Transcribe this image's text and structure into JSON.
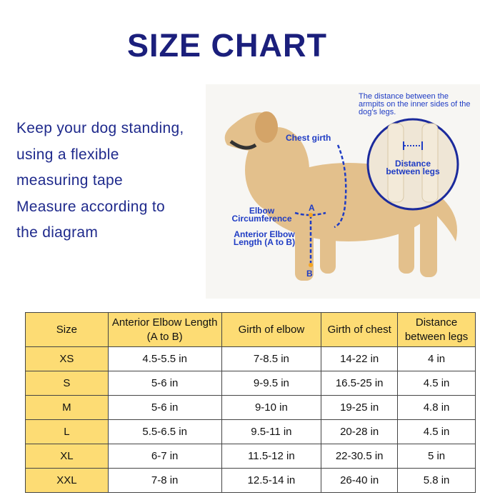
{
  "title": "SIZE CHART",
  "intro_lines": [
    "Keep your dog standing,",
    "using a flexible",
    "measuring tape",
    "Measure according to",
    "the diagram"
  ],
  "diagram": {
    "note": "The distance between the armpits on the inner sides of the dog's legs.",
    "chest_girth": "Chest girth",
    "distance_between_legs": "Distance between legs",
    "elbow_circumference": "Elbow Circumference",
    "anterior_elbow_length": "Anterior Elbow Length (A to B)",
    "point_a": "A",
    "point_b": "B",
    "accent_color": "#1f3cc4"
  },
  "table": {
    "headers": [
      "Size",
      "Anterior Elbow Length (A to B)",
      "Girth of elbow",
      "Girth of chest",
      "Distance between legs"
    ],
    "rows": [
      [
        "XS",
        "4.5-5.5 in",
        "7-8.5 in",
        "14-22 in",
        "4 in"
      ],
      [
        "S",
        "5-6 in",
        "9-9.5 in",
        "16.5-25 in",
        "4.5 in"
      ],
      [
        "M",
        "5-6 in",
        "9-10 in",
        "19-25 in",
        "4.8 in"
      ],
      [
        "L",
        "5.5-6.5 in",
        "9.5-11 in",
        "20-28 in",
        "4.5 in"
      ],
      [
        "XL",
        "6-7 in",
        "11.5-12 in",
        "22-30.5 in",
        "5 in"
      ],
      [
        "XXL",
        "7-8 in",
        "12.5-14 in",
        "26-40 in",
        "5.8 in"
      ]
    ],
    "header_color": "#fddc74"
  }
}
